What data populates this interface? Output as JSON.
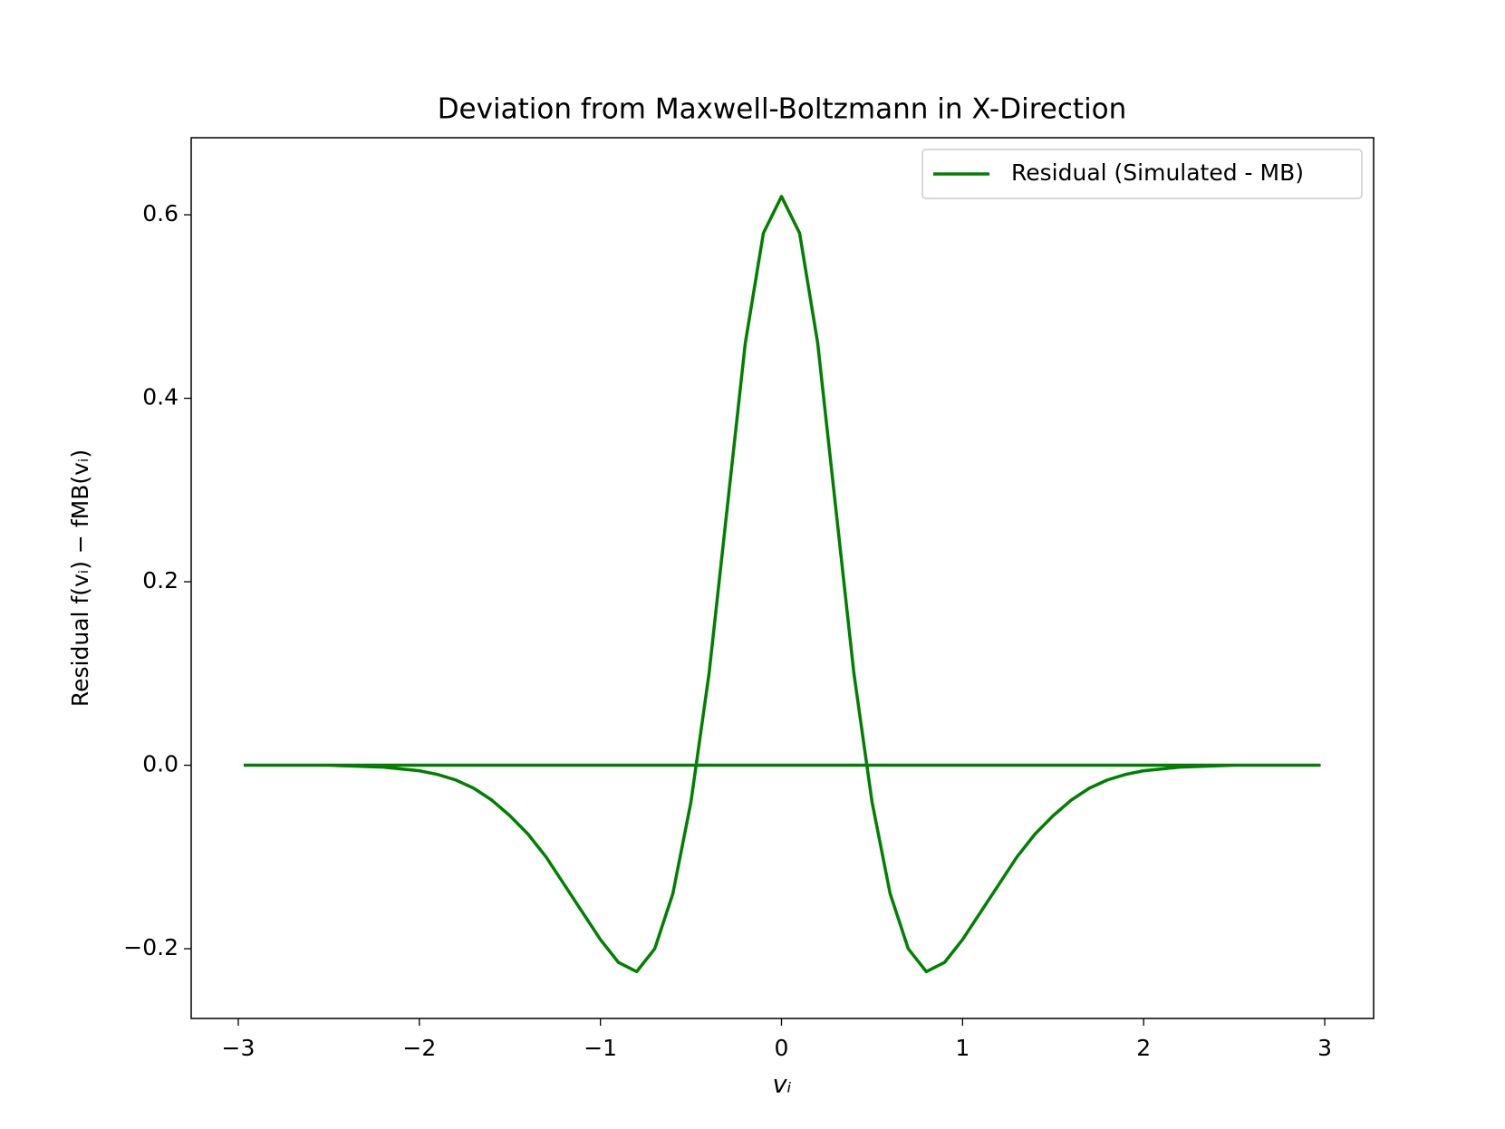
{
  "chart_data": {
    "type": "line",
    "title": "Deviation from Maxwell-Boltzmann in X-Direction",
    "xlabel": "vᵢ",
    "ylabel": "Residual f(vᵢ) − fMB(vᵢ)",
    "x": [
      -2.97,
      -2.5,
      -2.2,
      -2.0,
      -1.9,
      -1.8,
      -1.7,
      -1.6,
      -1.5,
      -1.4,
      -1.3,
      -1.2,
      -1.1,
      -1.0,
      -0.9,
      -0.8,
      -0.7,
      -0.6,
      -0.5,
      -0.4,
      -0.3,
      -0.2,
      -0.1,
      0.0,
      0.1,
      0.2,
      0.3,
      0.4,
      0.5,
      0.6,
      0.7,
      0.8,
      0.9,
      1.0,
      1.1,
      1.2,
      1.3,
      1.4,
      1.5,
      1.6,
      1.7,
      1.8,
      1.9,
      2.0,
      2.2,
      2.5,
      2.97,
      -2.97
    ],
    "series": [
      {
        "name": "Residual (Simulated - MB)",
        "color": "#008000",
        "values": [
          0,
          0,
          -0.002,
          -0.006,
          -0.01,
          -0.016,
          -0.025,
          -0.038,
          -0.055,
          -0.075,
          -0.1,
          -0.13,
          -0.16,
          -0.19,
          -0.215,
          -0.225,
          -0.2,
          -0.14,
          -0.04,
          0.1,
          0.28,
          0.46,
          0.58,
          0.62,
          0.58,
          0.46,
          0.28,
          0.1,
          -0.04,
          -0.14,
          -0.2,
          -0.225,
          -0.215,
          -0.19,
          -0.16,
          -0.13,
          -0.1,
          -0.075,
          -0.055,
          -0.038,
          -0.025,
          -0.016,
          -0.01,
          -0.006,
          -0.002,
          0,
          0,
          0
        ]
      }
    ],
    "xlim": [
      -3.26,
      3.27
    ],
    "ylim": [
      -0.276,
      0.684
    ],
    "xticks": [
      {
        "value": -3,
        "label": "−3"
      },
      {
        "value": -2,
        "label": "−2"
      },
      {
        "value": -1,
        "label": "−1"
      },
      0,
      1,
      2,
      3
    ],
    "yticks": [
      {
        "value": -0.2,
        "label": "−0.2"
      },
      {
        "value": 0,
        "label": "0.0"
      },
      0.2,
      0.4,
      0.6
    ],
    "grid": false,
    "legend": "upper right"
  }
}
